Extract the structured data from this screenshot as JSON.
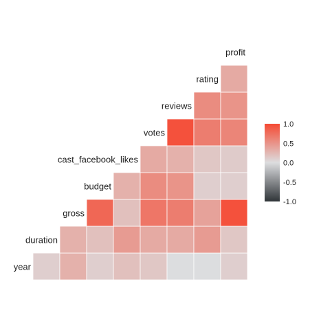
{
  "chart_data": {
    "type": "heatmap",
    "title": "",
    "variables": [
      "year",
      "duration",
      "gross",
      "budget",
      "cast_facebook_likes",
      "votes",
      "reviews",
      "rating",
      "profit"
    ],
    "correlations": [
      [
        0.1,
        0.3,
        0.1,
        0.2,
        0.15,
        0.0,
        0.0,
        0.1
      ],
      [
        0.3,
        0.2,
        0.45,
        0.35,
        0.35,
        0.45,
        0.15
      ],
      [
        0.8,
        0.2,
        0.7,
        0.65,
        0.4,
        0.95
      ],
      [
        0.3,
        0.55,
        0.5,
        0.1,
        0.1
      ],
      [
        0.35,
        0.3,
        0.15,
        0.12
      ],
      [
        0.95,
        0.65,
        0.6
      ],
      [
        0.55,
        0.5
      ],
      [
        0.35
      ]
    ],
    "colorbar": {
      "ticks": [
        "1.0",
        "0.5",
        "0.0",
        "-0.5",
        "-1.0"
      ],
      "tick_values": [
        1.0,
        0.5,
        0.0,
        -0.5,
        -1.0
      ],
      "range": [
        -1.0,
        1.0
      ],
      "colors": {
        "low": "#2f3438",
        "mid": "#dcdddf",
        "high": "#f54a33"
      }
    },
    "grid": false,
    "legend": "right"
  }
}
